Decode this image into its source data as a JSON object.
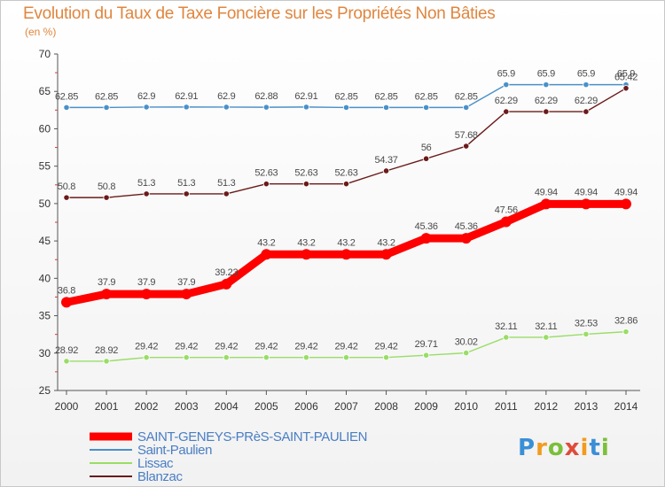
{
  "chart_data": {
    "type": "line",
    "title": "Evolution du Taux de Taxe Foncière sur les Propriétés Non Bâties",
    "ylabel": "(en %)",
    "xlabel": "",
    "ylim": [
      25,
      70
    ],
    "yticks": [
      25,
      30,
      35,
      40,
      45,
      50,
      55,
      60,
      65,
      70
    ],
    "categories": [
      "2000",
      "2001",
      "2002",
      "2003",
      "2004",
      "2005",
      "2006",
      "2007",
      "2008",
      "2009",
      "2010",
      "2011",
      "2012",
      "2013",
      "2014"
    ],
    "series": [
      {
        "name": "SAINT-GENEYS-PRèS-SAINT-PAULIEN",
        "color": "#ff0000",
        "values": [
          36.8,
          37.9,
          37.9,
          37.9,
          39.23,
          43.2,
          43.2,
          43.2,
          43.2,
          45.36,
          45.36,
          47.56,
          49.94,
          49.94,
          49.94
        ],
        "labels": [
          "36.8",
          "37.9",
          "37.9",
          "37.9",
          "39.23",
          "43.2",
          "43.2",
          "43.2",
          "43.2",
          "45.36",
          "45.36",
          "47.56",
          "49.94",
          "49.94",
          "49.94"
        ]
      },
      {
        "name": "Saint-Paulien",
        "color": "#4a90c8",
        "values": [
          62.85,
          62.85,
          62.9,
          62.91,
          62.9,
          62.88,
          62.91,
          62.85,
          62.85,
          62.85,
          62.85,
          65.9,
          65.9,
          65.9,
          65.9
        ],
        "labels": [
          "62.85",
          "62.85",
          "62.9",
          "62.91",
          "62.9",
          "62.88",
          "62.91",
          "62.85",
          "62.85",
          "62.85",
          "62.85",
          "65.9",
          "65.9",
          "65.9",
          "65.9"
        ]
      },
      {
        "name": "Lissac",
        "color": "#99dd66",
        "values": [
          28.92,
          28.92,
          29.42,
          29.42,
          29.42,
          29.42,
          29.42,
          29.42,
          29.42,
          29.71,
          30.02,
          32.11,
          32.11,
          32.53,
          32.86
        ],
        "labels": [
          "28.92",
          "28.92",
          "29.42",
          "29.42",
          "29.42",
          "29.42",
          "29.42",
          "29.42",
          "29.42",
          "29.71",
          "30.02",
          "32.11",
          "32.11",
          "32.53",
          "32.86"
        ]
      },
      {
        "name": "Blanzac",
        "color": "#6b1a1a",
        "values": [
          50.8,
          50.8,
          51.3,
          51.3,
          51.3,
          52.63,
          52.63,
          52.63,
          54.37,
          56,
          57.68,
          62.29,
          62.29,
          62.29,
          65.42
        ],
        "labels": [
          "50.8",
          "50.8",
          "51.3",
          "51.3",
          "51.3",
          "52.63",
          "52.63",
          "52.63",
          "54.37",
          "56",
          "57.68",
          "62.29",
          "62.29",
          "62.29",
          "65.42"
        ]
      }
    ],
    "legend_position": "bottom-left"
  },
  "logo": {
    "letters": [
      "P",
      "r",
      "o",
      "x",
      "i",
      "t",
      "i"
    ]
  }
}
